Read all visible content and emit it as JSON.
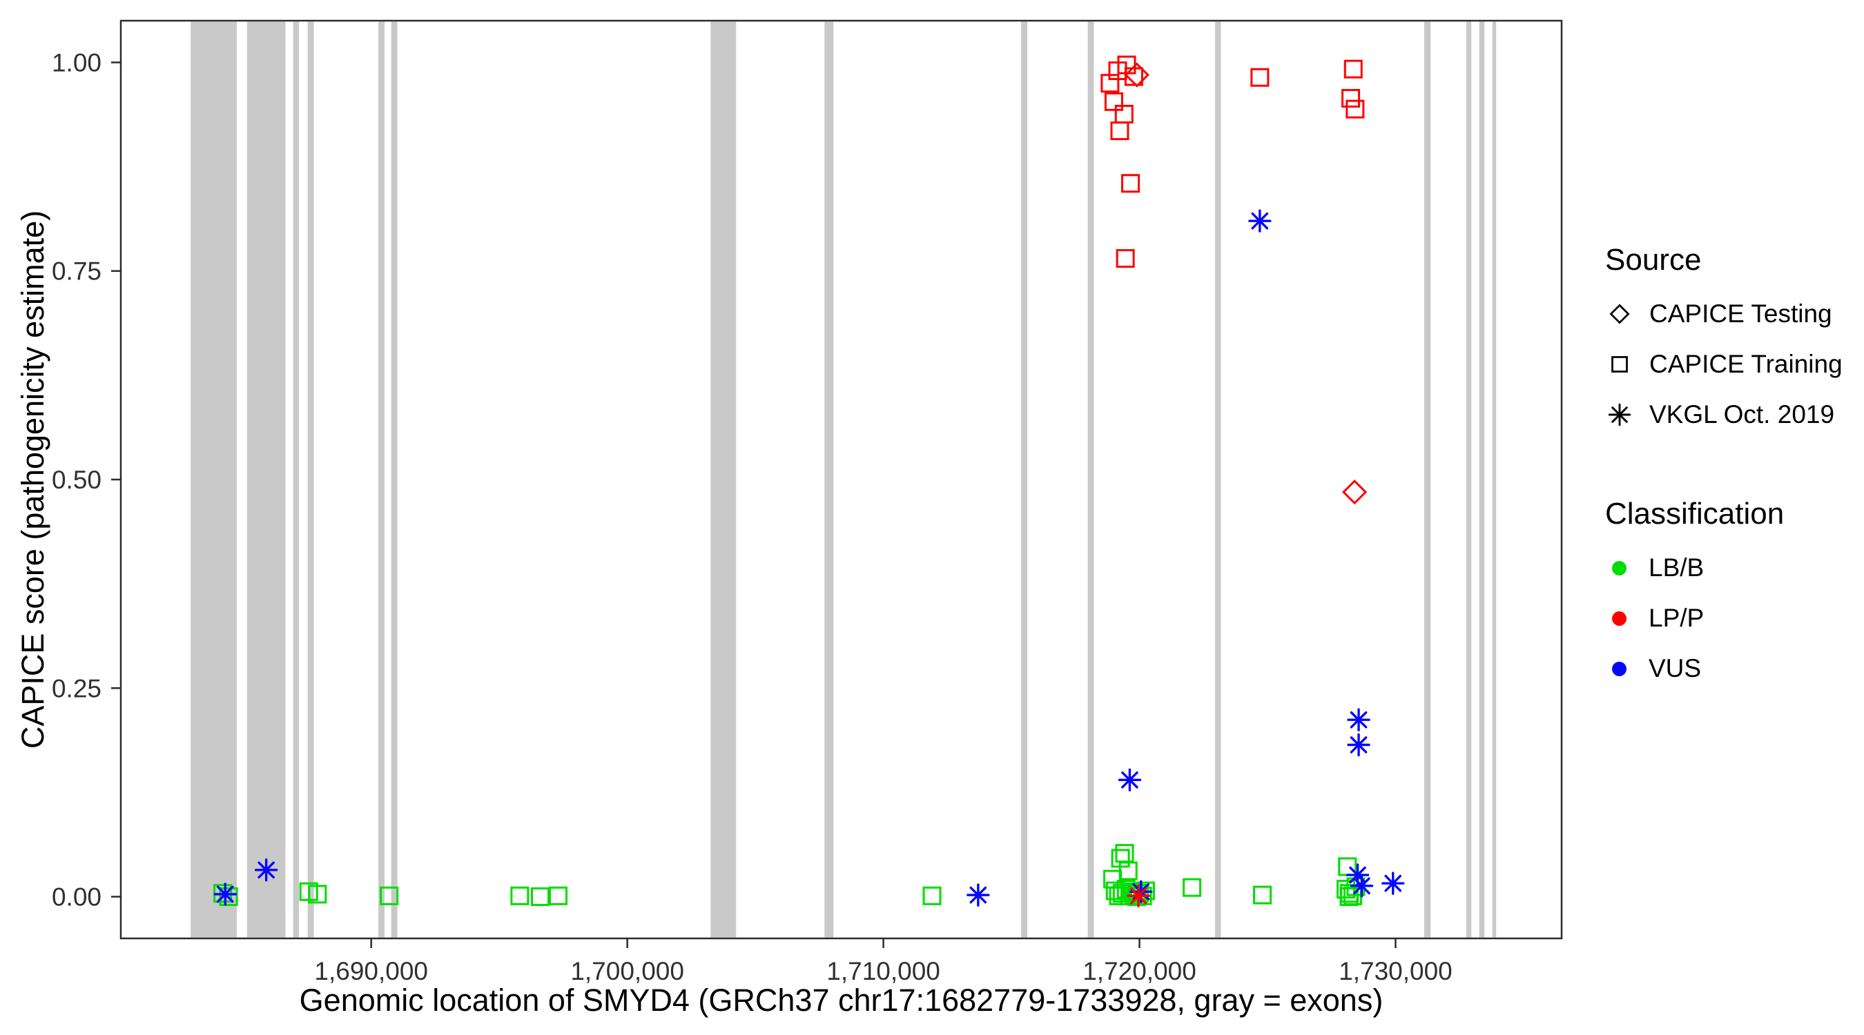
{
  "chart_data": {
    "type": "scatter",
    "title": "",
    "xlabel": "Genomic location of SMYD4 (GRCh37 chr17:1682779-1733928, gray = exons)",
    "ylabel": "CAPICE score (pathogenicity estimate)",
    "xlim": [
      1680222,
      1736485
    ],
    "ylim": [
      -0.05,
      1.05
    ],
    "x_ticks": [
      1690000,
      1700000,
      1710000,
      1720000,
      1730000
    ],
    "x_tick_labels": [
      "1,690,000",
      "1,700,000",
      "1,710,000",
      "1,720,000",
      "1,730,000"
    ],
    "y_ticks": [
      0,
      0.25,
      0.5,
      0.75,
      1
    ],
    "y_tick_labels": [
      "0.00",
      "0.25",
      "0.50",
      "0.75",
      "1.00"
    ],
    "grid": false,
    "legend_position": "right",
    "exon_color": "#c9c9c9",
    "exons": [
      [
        1682950,
        1684750
      ],
      [
        1685150,
        1686650
      ],
      [
        1686950,
        1687180
      ],
      [
        1687520,
        1687760
      ],
      [
        1690280,
        1690520
      ],
      [
        1690780,
        1691020
      ],
      [
        1703250,
        1704250
      ],
      [
        1707700,
        1708050
      ],
      [
        1715380,
        1715620
      ],
      [
        1717980,
        1718220
      ],
      [
        1722950,
        1723180
      ],
      [
        1731120,
        1731370
      ],
      [
        1732760,
        1732960
      ],
      [
        1733270,
        1733470
      ],
      [
        1733780,
        1733928
      ]
    ],
    "class_colors": {
      "LB/B": "#00dd00",
      "LP/P": "#ff0000",
      "VUS": "#0707ff"
    },
    "series": [
      {
        "name": "CAPICE Testing",
        "shape": "diamond",
        "points": [
          [
            1719900,
            0.985,
            "LP/P"
          ],
          [
            1728400,
            0.485,
            "LP/P"
          ]
        ]
      },
      {
        "name": "CAPICE Training",
        "shape": "square",
        "points": [
          [
            1718850,
            0.975,
            "LP/P"
          ],
          [
            1719150,
            0.99,
            "LP/P"
          ],
          [
            1719500,
            0.997,
            "LP/P"
          ],
          [
            1719780,
            0.983,
            "LP/P"
          ],
          [
            1719000,
            0.953,
            "LP/P"
          ],
          [
            1719400,
            0.938,
            "LP/P"
          ],
          [
            1719230,
            0.918,
            "LP/P"
          ],
          [
            1719650,
            0.855,
            "LP/P"
          ],
          [
            1719450,
            0.765,
            "LP/P"
          ],
          [
            1724700,
            0.982,
            "LP/P"
          ],
          [
            1728350,
            0.992,
            "LP/P"
          ],
          [
            1728250,
            0.957,
            "LP/P"
          ],
          [
            1728420,
            0.944,
            "LP/P"
          ],
          [
            1719900,
            0.004,
            "LP/P"
          ],
          [
            1684200,
            0.004,
            "LB/B"
          ],
          [
            1684430,
            0.0,
            "LB/B"
          ],
          [
            1687560,
            0.006,
            "LB/B"
          ],
          [
            1687900,
            0.003,
            "LB/B"
          ],
          [
            1690700,
            0.001,
            "LB/B"
          ],
          [
            1695800,
            0.001,
            "LB/B"
          ],
          [
            1696600,
            0.0,
            "LB/B"
          ],
          [
            1697300,
            0.001,
            "LB/B"
          ],
          [
            1711900,
            0.001,
            "LB/B"
          ],
          [
            1718950,
            0.021,
            "LB/B"
          ],
          [
            1719260,
            0.046,
            "LB/B"
          ],
          [
            1719420,
            0.052,
            "LB/B"
          ],
          [
            1719560,
            0.031,
            "LB/B"
          ],
          [
            1719050,
            0.007,
            "LB/B"
          ],
          [
            1719180,
            0.001,
            "LB/B"
          ],
          [
            1719320,
            0.004,
            "LB/B"
          ],
          [
            1719480,
            0.009,
            "LB/B"
          ],
          [
            1719620,
            0.001,
            "LB/B"
          ],
          [
            1719760,
            0.006,
            "LB/B"
          ],
          [
            1719880,
            0.0,
            "LB/B"
          ],
          [
            1720000,
            0.004,
            "LB/B"
          ],
          [
            1720120,
            0.001,
            "LB/B"
          ],
          [
            1720240,
            0.007,
            "LB/B"
          ],
          [
            1722050,
            0.011,
            "LB/B"
          ],
          [
            1724800,
            0.002,
            "LB/B"
          ],
          [
            1728120,
            0.036,
            "LB/B"
          ],
          [
            1728060,
            0.009,
            "LB/B"
          ],
          [
            1728200,
            0.004,
            "LB/B"
          ],
          [
            1728330,
            0.001,
            "LB/B"
          ],
          [
            1728450,
            0.012,
            "LB/B"
          ],
          [
            1728180,
            0.0,
            "LB/B"
          ]
        ]
      },
      {
        "name": "VKGL Oct. 2019",
        "shape": "asterisk",
        "points": [
          [
            1684300,
            0.003,
            "VUS"
          ],
          [
            1685900,
            0.032,
            "VUS"
          ],
          [
            1713700,
            0.002,
            "VUS"
          ],
          [
            1719620,
            0.14,
            "VUS"
          ],
          [
            1720060,
            0.006,
            "VUS"
          ],
          [
            1724700,
            0.81,
            "VUS"
          ],
          [
            1728560,
            0.212,
            "VUS"
          ],
          [
            1728560,
            0.182,
            "VUS"
          ],
          [
            1728520,
            0.026,
            "VUS"
          ],
          [
            1728680,
            0.013,
            "VUS"
          ],
          [
            1729900,
            0.016,
            "VUS"
          ],
          [
            1719960,
            0.001,
            "LP/P"
          ]
        ]
      }
    ]
  },
  "legend": {
    "source": {
      "title": "Source",
      "items": [
        {
          "label": "CAPICE Testing",
          "shape": "diamond"
        },
        {
          "label": "CAPICE Training",
          "shape": "square"
        },
        {
          "label": "VKGL Oct. 2019",
          "shape": "asterisk"
        }
      ]
    },
    "classification": {
      "title": "Classification",
      "items": [
        {
          "label": "LB/B",
          "class": "LB/B"
        },
        {
          "label": "LP/P",
          "class": "LP/P"
        },
        {
          "label": "VUS",
          "class": "VUS"
        }
      ]
    }
  }
}
